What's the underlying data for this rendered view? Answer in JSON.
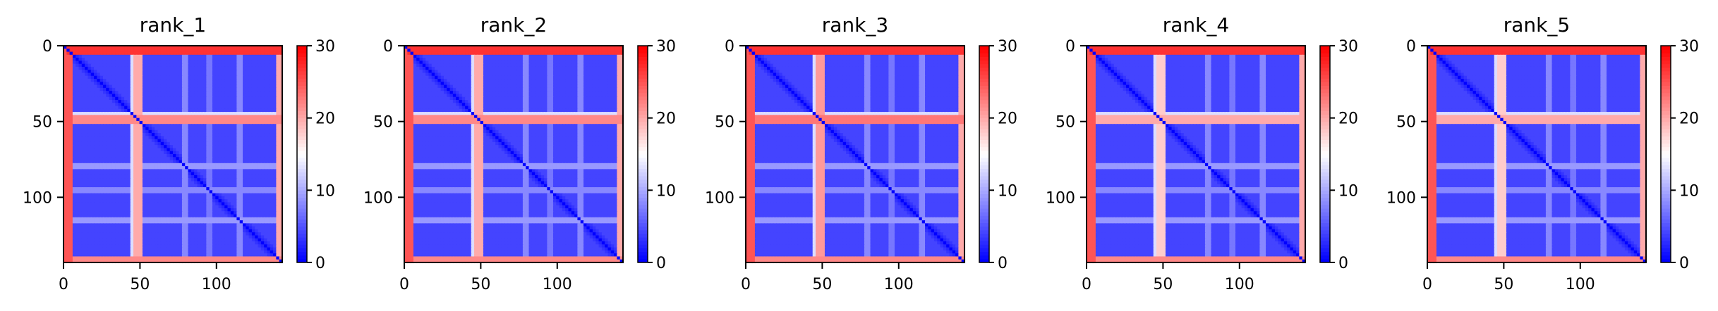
{
  "figure": {
    "background": "#ffffff"
  },
  "chart_data": [
    {
      "type": "heatmap",
      "title": "rank_1",
      "xlabel": "",
      "ylabel": "",
      "x_ticks": [
        0,
        50,
        100
      ],
      "y_ticks": [
        0,
        50,
        100
      ],
      "xlim": [
        0,
        143
      ],
      "ylim": [
        143,
        0
      ],
      "colormap": "bwr",
      "colormap_colors": [
        "#0000ff",
        "#ffffff",
        "#ff0000"
      ],
      "colorbar": {
        "min": 0,
        "max": 30,
        "ticks": [
          0,
          10,
          20,
          30
        ]
      },
      "features": {
        "diagonal_value": 0,
        "background_value": 4,
        "high_rows": [
          [
            0,
            6,
            27
          ],
          [
            46,
            52,
            22
          ],
          [
            140,
            143,
            22
          ]
        ],
        "medium_columns": [
          [
            44,
            50,
            13
          ]
        ],
        "faint_rows": [
          [
            78,
            82,
            9
          ],
          [
            93,
            97,
            8
          ],
          [
            113,
            117,
            9
          ]
        ]
      }
    },
    {
      "type": "heatmap",
      "title": "rank_2",
      "xlabel": "",
      "ylabel": "",
      "x_ticks": [
        0,
        50,
        100
      ],
      "y_ticks": [
        0,
        50,
        100
      ],
      "xlim": [
        0,
        143
      ],
      "ylim": [
        143,
        0
      ],
      "colormap": "bwr",
      "colormap_colors": [
        "#0000ff",
        "#ffffff",
        "#ff0000"
      ],
      "colorbar": {
        "min": 0,
        "max": 30,
        "ticks": [
          0,
          10,
          20,
          30
        ]
      },
      "features": {
        "diagonal_value": 0,
        "background_value": 4,
        "high_rows": [
          [
            0,
            6,
            27
          ],
          [
            46,
            52,
            22
          ],
          [
            140,
            143,
            22
          ]
        ],
        "medium_columns": [
          [
            44,
            50,
            13
          ]
        ],
        "faint_rows": [
          [
            78,
            82,
            9
          ],
          [
            93,
            97,
            8
          ],
          [
            113,
            117,
            9
          ]
        ]
      }
    },
    {
      "type": "heatmap",
      "title": "rank_3",
      "xlabel": "",
      "ylabel": "",
      "x_ticks": [
        0,
        50,
        100
      ],
      "y_ticks": [
        0,
        50,
        100
      ],
      "xlim": [
        0,
        143
      ],
      "ylim": [
        143,
        0
      ],
      "colormap": "bwr",
      "colormap_colors": [
        "#0000ff",
        "#ffffff",
        "#ff0000"
      ],
      "colorbar": {
        "min": 0,
        "max": 30,
        "ticks": [
          0,
          10,
          20,
          30
        ]
      },
      "features": {
        "diagonal_value": 0,
        "background_value": 4,
        "high_rows": [
          [
            0,
            6,
            27
          ],
          [
            46,
            52,
            23
          ],
          [
            140,
            143,
            22
          ]
        ],
        "medium_columns": [
          [
            44,
            50,
            13
          ]
        ],
        "faint_rows": [
          [
            78,
            82,
            9
          ],
          [
            93,
            97,
            8
          ],
          [
            113,
            117,
            9
          ]
        ]
      }
    },
    {
      "type": "heatmap",
      "title": "rank_4",
      "xlabel": "",
      "ylabel": "",
      "x_ticks": [
        0,
        50,
        100
      ],
      "y_ticks": [
        0,
        50,
        100
      ],
      "xlim": [
        0,
        143
      ],
      "ylim": [
        143,
        0
      ],
      "colormap": "bwr",
      "colormap_colors": [
        "#0000ff",
        "#ffffff",
        "#ff0000"
      ],
      "colorbar": {
        "min": 0,
        "max": 30,
        "ticks": [
          0,
          10,
          20,
          30
        ]
      },
      "features": {
        "diagonal_value": 0,
        "background_value": 4,
        "high_rows": [
          [
            0,
            6,
            27
          ],
          [
            46,
            52,
            20
          ],
          [
            140,
            143,
            22
          ]
        ],
        "medium_columns": [
          [
            44,
            50,
            13
          ]
        ],
        "faint_rows": [
          [
            78,
            82,
            9
          ],
          [
            93,
            97,
            8
          ],
          [
            113,
            117,
            9
          ]
        ]
      }
    },
    {
      "type": "heatmap",
      "title": "rank_5",
      "xlabel": "",
      "ylabel": "",
      "x_ticks": [
        0,
        50,
        100
      ],
      "y_ticks": [
        0,
        50,
        100
      ],
      "xlim": [
        0,
        143
      ],
      "ylim": [
        143,
        0
      ],
      "colormap": "bwr",
      "colormap_colors": [
        "#0000ff",
        "#ffffff",
        "#ff0000"
      ],
      "colorbar": {
        "min": 0,
        "max": 30,
        "ticks": [
          0,
          10,
          20,
          30
        ]
      },
      "features": {
        "diagonal_value": 0,
        "background_value": 4,
        "high_rows": [
          [
            0,
            6,
            27
          ],
          [
            46,
            52,
            20
          ],
          [
            140,
            143,
            22
          ]
        ],
        "medium_columns": [
          [
            44,
            50,
            13
          ]
        ],
        "faint_rows": [
          [
            78,
            82,
            9
          ],
          [
            93,
            97,
            8
          ],
          [
            113,
            117,
            9
          ]
        ]
      }
    }
  ]
}
